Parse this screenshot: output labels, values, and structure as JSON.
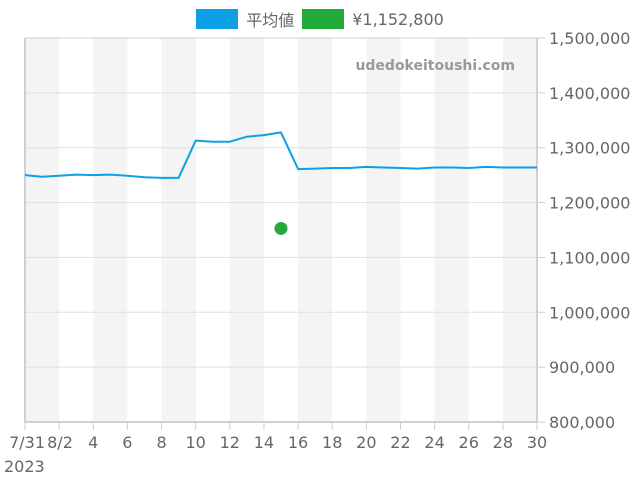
{
  "legend": [
    {
      "label": "平均値",
      "color": "#0ea0e6"
    },
    {
      "label": "¥1,152,800",
      "color": "#22aa3b"
    }
  ],
  "watermark": "udedokeitoushi.com",
  "chart_data": {
    "type": "line",
    "title": "",
    "xlabel": "",
    "ylabel": "",
    "x_tick_labels": [
      "7/31",
      "8/2",
      "4",
      "6",
      "8",
      "10",
      "12",
      "14",
      "16",
      "18",
      "20",
      "22",
      "24",
      "26",
      "28",
      "30"
    ],
    "x_year_label": "2023",
    "y_tick_labels": [
      "800,000",
      "900,000",
      "1,000,000",
      "1,100,000",
      "1,200,000",
      "1,300,000",
      "1,400,000",
      "1,500,000"
    ],
    "ylim": [
      800000,
      1500000
    ],
    "y_axis_position": "right",
    "grid": true,
    "alternating_day_bands": true,
    "legend_position": "top",
    "x": [
      "2023-07-31",
      "2023-08-01",
      "2023-08-02",
      "2023-08-03",
      "2023-08-04",
      "2023-08-05",
      "2023-08-06",
      "2023-08-07",
      "2023-08-08",
      "2023-08-09",
      "2023-08-10",
      "2023-08-11",
      "2023-08-12",
      "2023-08-13",
      "2023-08-14",
      "2023-08-15",
      "2023-08-16",
      "2023-08-17",
      "2023-08-18",
      "2023-08-19",
      "2023-08-20",
      "2023-08-21",
      "2023-08-22",
      "2023-08-23",
      "2023-08-24",
      "2023-08-25",
      "2023-08-26",
      "2023-08-27",
      "2023-08-28",
      "2023-08-29",
      "2023-08-30"
    ],
    "series": [
      {
        "name": "平均値",
        "type": "line",
        "color": "#0ea0e6",
        "values": [
          1250000,
          1247000,
          1249000,
          1251000,
          1250000,
          1251000,
          1249000,
          1246000,
          1245000,
          1245000,
          1313000,
          1311000,
          1311000,
          1320000,
          1323000,
          1328000,
          1261000,
          1262000,
          1263000,
          1263000,
          1265000,
          1264000,
          1263000,
          1262000,
          1264000,
          1264000,
          1263000,
          1265000,
          1264000,
          1264000,
          1264000
        ]
      },
      {
        "name": "¥1,152,800",
        "type": "scatter",
        "color": "#22aa3b",
        "points": [
          {
            "x": "2023-08-15",
            "y": 1152800
          }
        ]
      }
    ]
  }
}
